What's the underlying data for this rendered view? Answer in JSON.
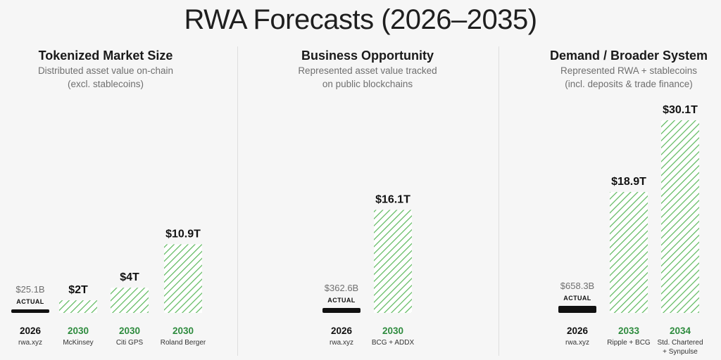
{
  "title": "RWA Forecasts (2026–2035)",
  "colors": {
    "forecast_green": "#2e8b3e",
    "hatch_green": "#5cb85c",
    "actual_black": "#111111",
    "subtitle_gray": "#6f6f6f"
  },
  "chart_data": [
    {
      "type": "bar",
      "title": "Tokenized Market Size",
      "subtitle": [
        "Distributed asset value on-chain",
        "(excl. stablecoins)"
      ],
      "categories": [
        "2026",
        "2030",
        "2030",
        "2030"
      ],
      "sources": [
        [
          "rwa.xyz"
        ],
        [
          "McKinsey"
        ],
        [
          "Citi GPS"
        ],
        [
          "Roland Berger"
        ]
      ],
      "values": [
        0.0251,
        2,
        4,
        10.9
      ],
      "value_labels": [
        "$25.1B",
        "$2T",
        "$4T",
        "$10.9T"
      ],
      "kinds": [
        "actual",
        "forecast",
        "forecast",
        "forecast"
      ],
      "actual_label": "ACTUAL",
      "unit": "trillion USD"
    },
    {
      "type": "bar",
      "title": "Business Opportunity",
      "subtitle": [
        "Represented asset value tracked",
        "on public blockchains"
      ],
      "categories": [
        "2026",
        "2030"
      ],
      "sources": [
        [
          "rwa.xyz"
        ],
        [
          "BCG + ADDX"
        ]
      ],
      "values": [
        0.3626,
        16.1
      ],
      "value_labels": [
        "$362.6B",
        "$16.1T"
      ],
      "kinds": [
        "actual",
        "forecast"
      ],
      "actual_label": "ACTUAL",
      "unit": "trillion USD"
    },
    {
      "type": "bar",
      "title": "Demand / Broader System",
      "subtitle": [
        "Represented RWA + stablecoins",
        "(incl. deposits & trade finance)"
      ],
      "categories": [
        "2026",
        "2033",
        "2034"
      ],
      "sources": [
        [
          "rwa.xyz"
        ],
        [
          "Ripple + BCG"
        ],
        [
          "Std. Chartered",
          "+ Synpulse"
        ]
      ],
      "values": [
        0.6583,
        18.9,
        30.1
      ],
      "value_labels": [
        "$658.3B",
        "$18.9T",
        "$30.1T"
      ],
      "kinds": [
        "actual",
        "forecast",
        "forecast"
      ],
      "actual_label": "ACTUAL",
      "unit": "trillion USD"
    }
  ]
}
